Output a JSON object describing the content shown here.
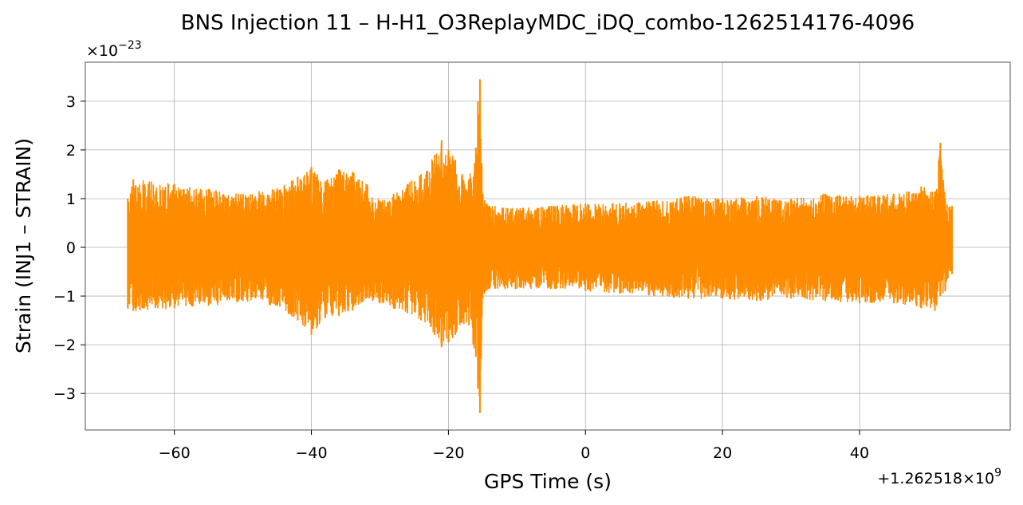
{
  "chart_data": {
    "type": "line",
    "title": "BNS Injection 11 – H-H1_O3ReplayMDC_iDQ_combo-1262514176-4096",
    "xlabel": "GPS Time (s)",
    "ylabel": "Strain (INJ1 – STRAIN)",
    "x_offset_label": "+1.262518×10",
    "x_offset_exponent": "9",
    "y_scale_label": "×10",
    "y_scale_exponent": "−23",
    "xlim": [
      -73,
      62
    ],
    "ylim": [
      -3.75,
      3.8
    ],
    "x_ticks": [
      -60,
      -40,
      -20,
      0,
      20,
      40
    ],
    "x_tick_labels": [
      "−60",
      "−40",
      "−20",
      "0",
      "20",
      "40"
    ],
    "y_ticks": [
      -3,
      -2,
      -1,
      0,
      1,
      2,
      3
    ],
    "y_tick_labels": [
      "−3",
      "−2",
      "−1",
      "0",
      "1",
      "2",
      "3"
    ],
    "grid": true,
    "series": [
      {
        "color": "#ff8c00",
        "x": [
          -66.8,
          -66.0,
          -60.0,
          -55.0,
          -50.0,
          -45.0,
          -42.0,
          -40.0,
          -38.0,
          -36.0,
          -34.0,
          -32.0,
          -30.0,
          -28.0,
          -26.0,
          -24.0,
          -22.0,
          -21.0,
          -20.0,
          -19.0,
          -18.0,
          -17.0,
          -16.0,
          -15.7,
          -15.4,
          -15.0,
          -14.0,
          -10.0,
          -5.0,
          0.0,
          5.0,
          10.0,
          15.0,
          20.0,
          25.0,
          30.0,
          35.0,
          40.0,
          45.0,
          49.0,
          51.0,
          51.8,
          52.5,
          53.5
        ],
        "envelope_max": [
          1.0,
          1.4,
          1.3,
          1.2,
          1.1,
          1.2,
          1.45,
          1.65,
          1.35,
          1.6,
          1.55,
          1.3,
          0.95,
          1.1,
          1.3,
          1.5,
          1.9,
          2.2,
          2.0,
          1.8,
          1.5,
          1.4,
          2.05,
          3.0,
          3.45,
          1.1,
          0.85,
          0.8,
          0.85,
          0.9,
          0.9,
          0.95,
          1.05,
          1.0,
          1.05,
          1.0,
          1.1,
          1.05,
          1.1,
          1.25,
          1.15,
          2.15,
          1.0,
          0.85
        ],
        "envelope_min": [
          -1.25,
          -1.3,
          -1.25,
          -1.2,
          -1.1,
          -1.2,
          -1.5,
          -1.8,
          -1.45,
          -1.4,
          -1.3,
          -1.05,
          -1.15,
          -1.25,
          -1.35,
          -1.5,
          -1.8,
          -2.05,
          -1.95,
          -1.8,
          -1.55,
          -1.6,
          -2.25,
          -2.9,
          -3.4,
          -1.05,
          -0.85,
          -0.85,
          -0.85,
          -0.9,
          -0.95,
          -1.0,
          -1.05,
          -1.05,
          -1.1,
          -1.05,
          -1.1,
          -1.15,
          -1.15,
          -1.25,
          -1.3,
          -1.0,
          -0.9,
          -0.55
        ]
      }
    ]
  }
}
